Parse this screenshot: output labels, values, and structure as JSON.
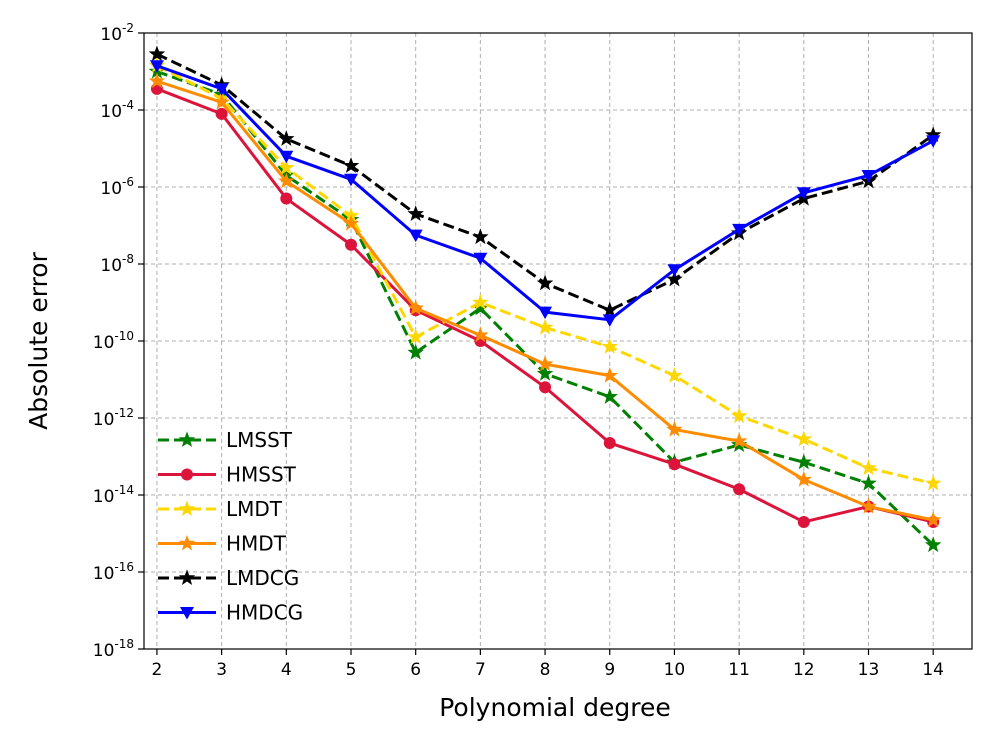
{
  "chart_data": {
    "type": "line",
    "title": "",
    "xlabel": "Polynomial degree",
    "ylabel": "Absolute error",
    "yscale": "log",
    "xlim": [
      1.8,
      14.6
    ],
    "ylim_exponents": [
      -18,
      -2
    ],
    "grid": true,
    "legend_position": "lower-left",
    "x": [
      2,
      3,
      4,
      5,
      6,
      7,
      8,
      9,
      10,
      11,
      12,
      13,
      14
    ],
    "xticks": [
      "2",
      "3",
      "4",
      "5",
      "6",
      "7",
      "8",
      "9",
      "10",
      "11",
      "12",
      "13",
      "14"
    ],
    "ytick_base": "10",
    "ytick_exponents": [
      "-18",
      "-16",
      "-14",
      "-12",
      "-10",
      "-8",
      "-6",
      "-4",
      "-2"
    ],
    "ytick_values": [
      -18,
      -16,
      -14,
      -12,
      -10,
      -8,
      -6,
      -4,
      -2
    ],
    "series": [
      {
        "name": "LMSST",
        "color": "#008000",
        "dashed": true,
        "marker": "star",
        "log10_values": [
          -3.0,
          -3.6,
          -5.7,
          -6.85,
          -10.3,
          -9.15,
          -10.85,
          -11.45,
          -13.15,
          -12.7,
          -13.15,
          -13.7,
          -15.3
        ]
      },
      {
        "name": "HMSST",
        "color": "#dc143c",
        "dashed": false,
        "marker": "circle",
        "log10_values": [
          -3.45,
          -4.1,
          -6.3,
          -7.5,
          -9.2,
          -10.0,
          -11.2,
          -12.65,
          -13.2,
          -13.85,
          -14.7,
          -14.3,
          -14.7
        ]
      },
      {
        "name": "LMDT",
        "color": "#ffd700",
        "dashed": true,
        "marker": "star",
        "log10_values": [
          -2.85,
          -3.7,
          -5.5,
          -6.75,
          -9.9,
          -9.0,
          -9.65,
          -10.15,
          -10.9,
          -11.95,
          -12.55,
          -13.3,
          -13.7
        ]
      },
      {
        "name": "HMDT",
        "color": "#ff8c00",
        "dashed": false,
        "marker": "star",
        "log10_values": [
          -3.25,
          -3.8,
          -5.85,
          -6.95,
          -9.15,
          -9.85,
          -10.6,
          -10.9,
          -12.3,
          -12.6,
          -13.6,
          -14.3,
          -14.65
        ]
      },
      {
        "name": "LMDCG",
        "color": "#000000",
        "dashed": true,
        "marker": "star",
        "log10_values": [
          -2.55,
          -3.35,
          -4.75,
          -5.45,
          -6.7,
          -7.3,
          -8.5,
          -9.2,
          -8.4,
          -7.2,
          -6.3,
          -5.85,
          -4.65
        ]
      },
      {
        "name": "HMDCG",
        "color": "#0000ff",
        "dashed": false,
        "marker": "triangle-down",
        "log10_values": [
          -2.85,
          -3.45,
          -5.2,
          -5.8,
          -7.25,
          -7.85,
          -9.25,
          -9.45,
          -8.15,
          -7.1,
          -6.15,
          -5.7,
          -4.8
        ]
      }
    ]
  }
}
